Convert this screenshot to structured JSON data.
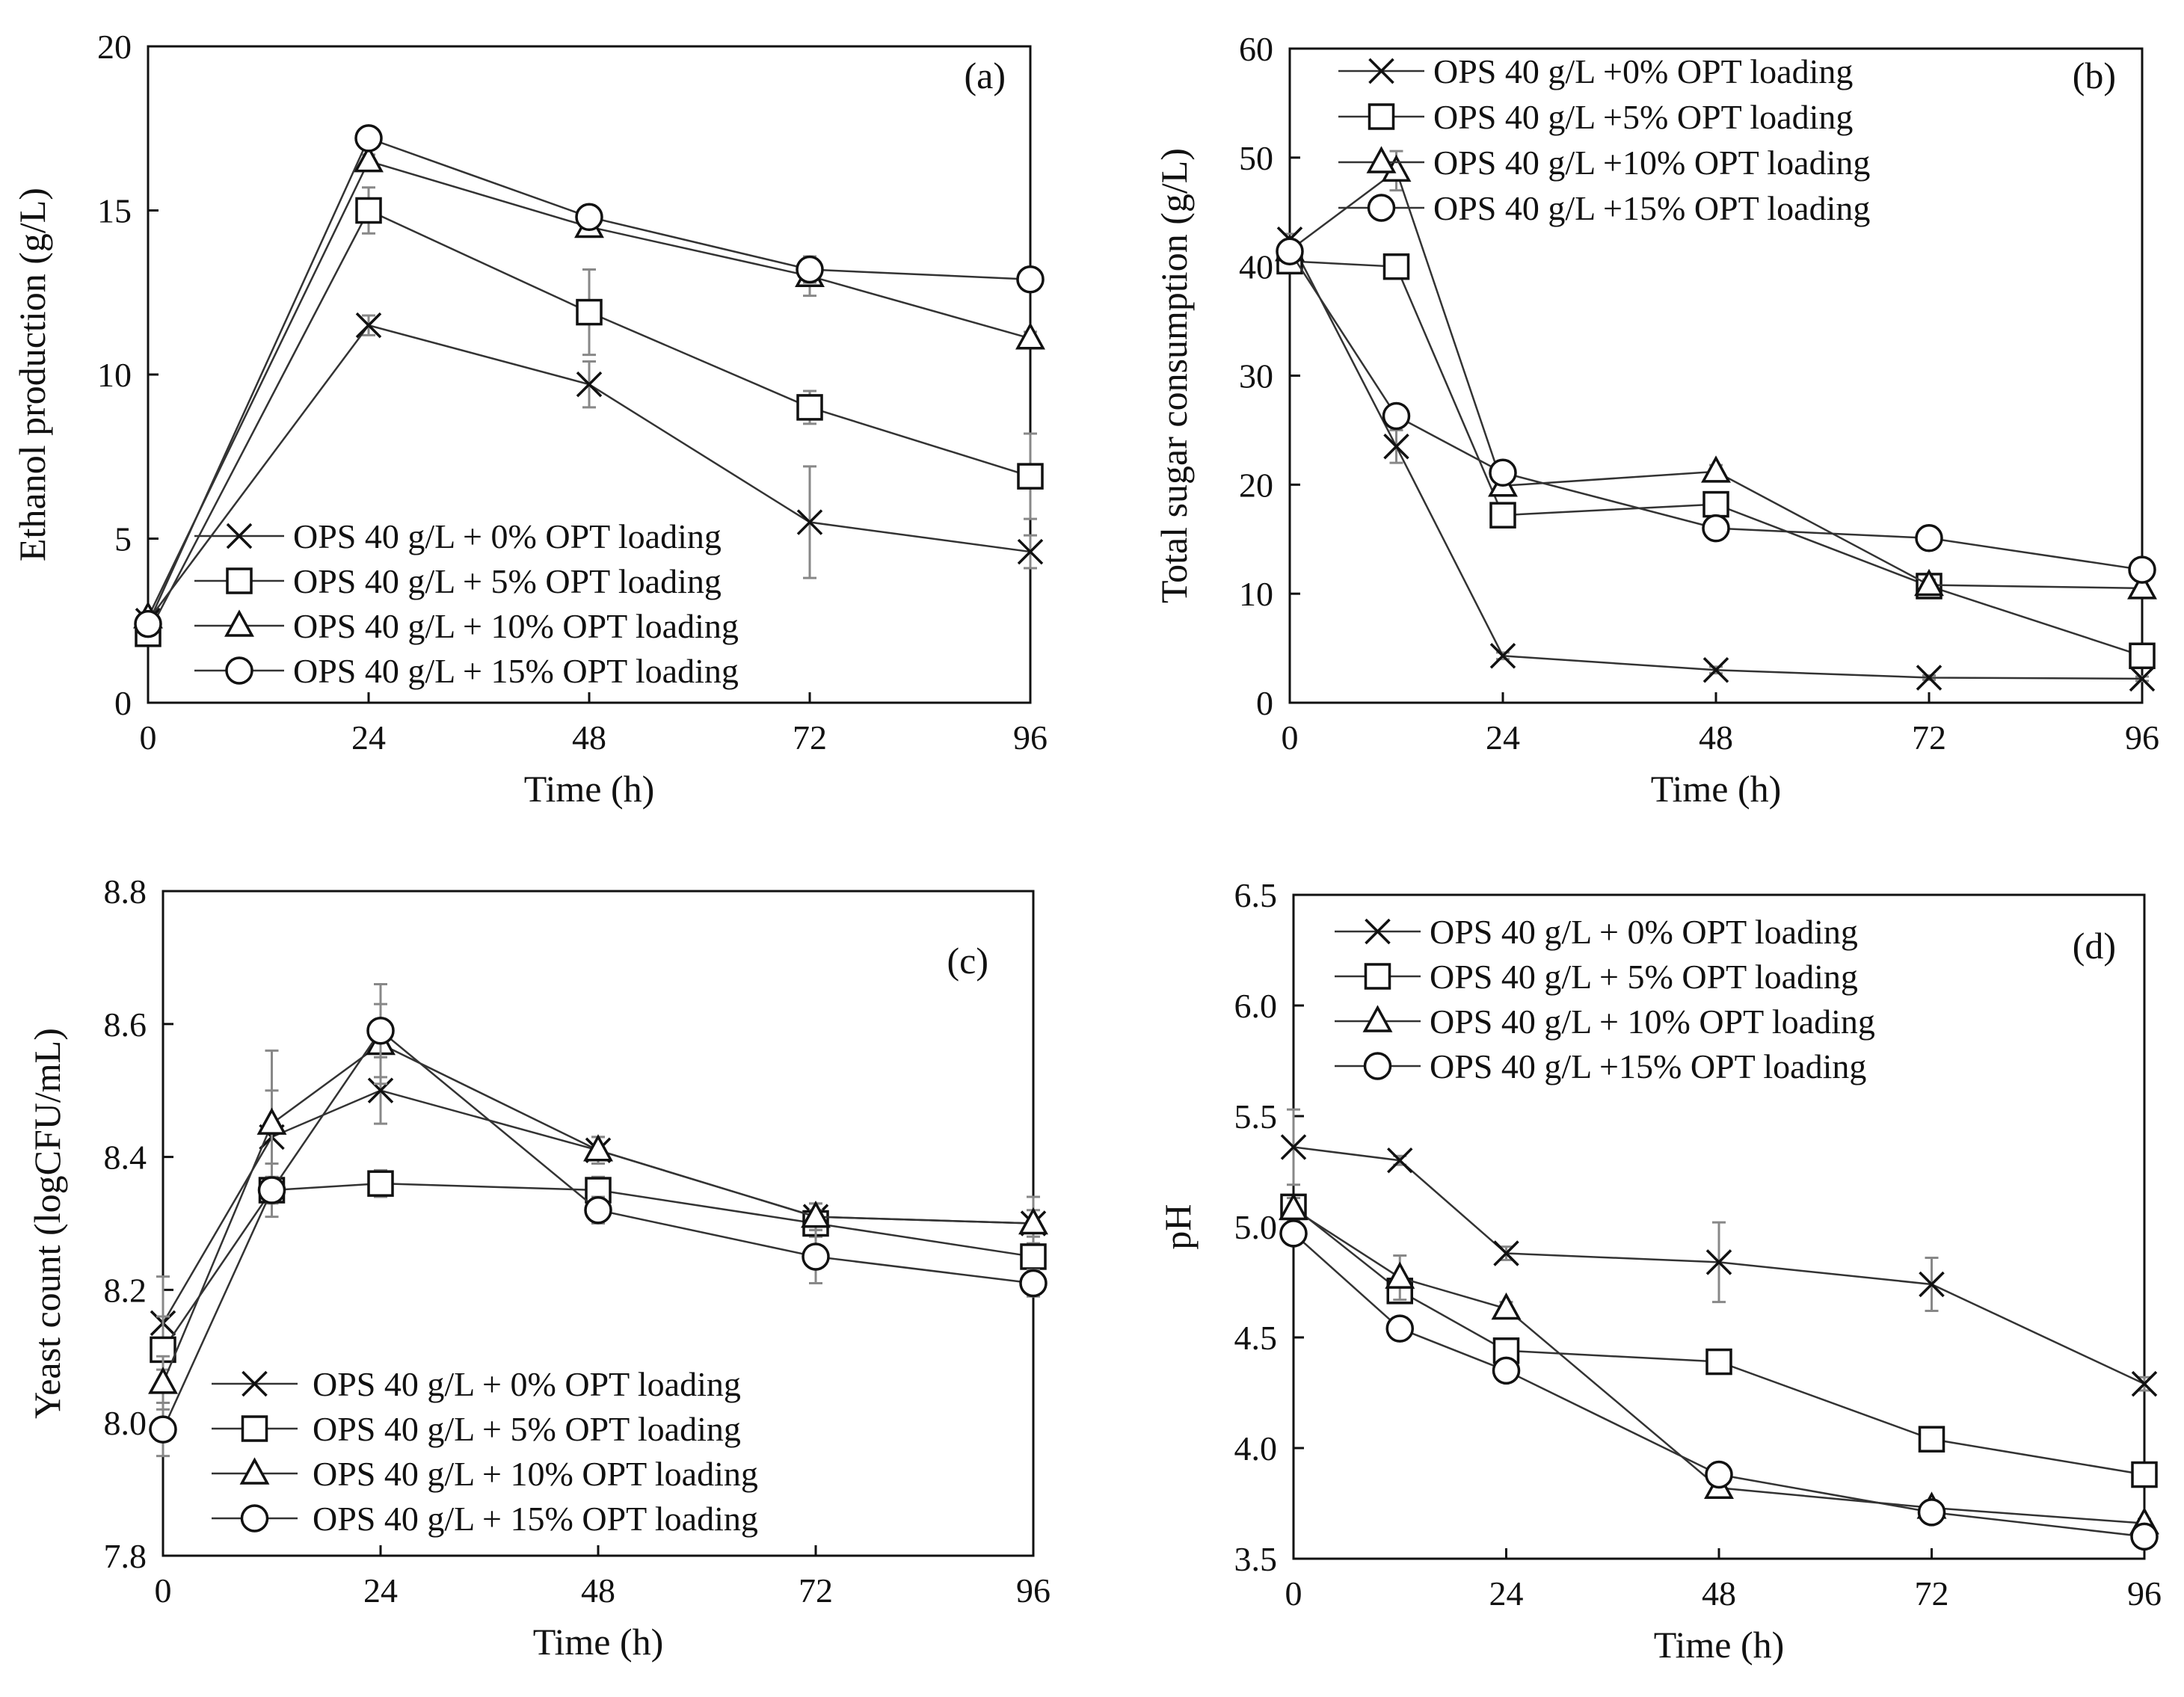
{
  "chart_data": [
    {
      "id": "a",
      "type": "line",
      "panel_label": "(a)",
      "xlabel": "Time (h)",
      "ylabel": "Ethanol production (g/L)",
      "xlim": [
        0,
        96
      ],
      "ylim": [
        0,
        20
      ],
      "xticks": [
        0,
        24,
        48,
        72,
        96
      ],
      "yticks": [
        0,
        5,
        10,
        15,
        20
      ],
      "ytick_labels": [
        "0",
        "5",
        "10",
        "15",
        "20"
      ],
      "legend_position": "bottom-left",
      "x": [
        0,
        24,
        48,
        72,
        96
      ],
      "series": [
        {
          "name": "OPS 40 g/L + 0% OPT loading",
          "marker": "x",
          "values": [
            2.5,
            11.5,
            9.7,
            5.5,
            4.6
          ],
          "errors": [
            0.2,
            0.3,
            0.7,
            1.7,
            0.5
          ]
        },
        {
          "name": "OPS 40 g/L + 5% OPT loading",
          "marker": "square",
          "values": [
            2.1,
            15.0,
            11.9,
            9.0,
            6.9
          ],
          "errors": [
            0.2,
            0.7,
            1.3,
            0.5,
            1.3
          ]
        },
        {
          "name": "OPS 40 g/L + 10% OPT loading",
          "marker": "triangle",
          "values": [
            2.6,
            16.5,
            14.5,
            13.0,
            11.1
          ],
          "errors": [
            0.1,
            0.2,
            0.3,
            0.6,
            0.2
          ]
        },
        {
          "name": "OPS 40 g/L + 15% OPT loading",
          "marker": "circle",
          "values": [
            2.4,
            17.2,
            14.8,
            13.2,
            12.9
          ],
          "errors": [
            0.1,
            0.2,
            0.2,
            0.4,
            0.1
          ]
        }
      ]
    },
    {
      "id": "b",
      "type": "line",
      "panel_label": "(b)",
      "xlabel": "Time (h)",
      "ylabel": "Total sugar consumption (g/L)",
      "xlim": [
        0,
        96
      ],
      "ylim": [
        0,
        60
      ],
      "xticks": [
        0,
        24,
        48,
        72,
        96
      ],
      "yticks": [
        0,
        10,
        20,
        30,
        40,
        50,
        60
      ],
      "ytick_labels": [
        "0",
        "10",
        "20",
        "30",
        "40",
        "50",
        "60"
      ],
      "legend_position": "top",
      "x": [
        0,
        12,
        24,
        48,
        72,
        96
      ],
      "series": [
        {
          "name": "OPS 40 g/L +0% OPT loading",
          "marker": "x",
          "values": [
            42.5,
            23.5,
            4.3,
            3.0,
            2.3,
            2.2
          ],
          "errors": [
            0.5,
            1.5,
            0.3,
            0.3,
            0.2,
            0.2
          ]
        },
        {
          "name": "OPS 40 g/L +5% OPT loading",
          "marker": "square",
          "values": [
            40.5,
            40.0,
            17.2,
            18.2,
            10.7,
            4.3
          ],
          "errors": [
            0.5,
            1.0,
            0.6,
            0.6,
            0.5,
            0.4
          ]
        },
        {
          "name": "OPS 40 g/L +10% OPT loading",
          "marker": "triangle",
          "values": [
            41.5,
            48.8,
            19.9,
            21.2,
            10.8,
            10.5
          ],
          "errors": [
            0.5,
            1.8,
            0.6,
            0.6,
            0.5,
            0.3
          ]
        },
        {
          "name": "OPS 40 g/L +15% OPT loading",
          "marker": "circle",
          "values": [
            41.4,
            26.3,
            21.1,
            16.0,
            15.1,
            12.2
          ],
          "errors": [
            0.5,
            0.8,
            0.5,
            0.4,
            0.4,
            0.4
          ]
        }
      ]
    },
    {
      "id": "c",
      "type": "line",
      "panel_label": "(c)",
      "xlabel": "Time (h)",
      "ylabel": "Yeast count (logCFU/mL)",
      "xlim": [
        0,
        96
      ],
      "ylim": [
        7.8,
        8.8
      ],
      "xticks": [
        0,
        24,
        48,
        72,
        96
      ],
      "yticks": [
        7.8,
        8.0,
        8.2,
        8.4,
        8.6,
        8.8
      ],
      "ytick_labels": [
        "7.8",
        "8.0",
        "8.2",
        "8.4",
        "8.6",
        "8.8"
      ],
      "legend_position": "bottom-left",
      "x": [
        0,
        12,
        24,
        48,
        72,
        96
      ],
      "series": [
        {
          "name": "OPS 40 g/L + 0% OPT loading",
          "marker": "x",
          "values": [
            8.15,
            8.43,
            8.5,
            8.41,
            8.31,
            8.3
          ],
          "errors": [
            0.07,
            0.07,
            0.05,
            0.02,
            0.02,
            0.04
          ]
        },
        {
          "name": "OPS 40 g/L + 5% OPT loading",
          "marker": "square",
          "values": [
            8.11,
            8.35,
            8.36,
            8.35,
            8.3,
            8.25
          ],
          "errors": [
            0.05,
            0.02,
            0.02,
            0.02,
            0.02,
            0.02
          ]
        },
        {
          "name": "OPS 40 g/L + 10% OPT loading",
          "marker": "triangle",
          "values": [
            8.06,
            8.45,
            8.57,
            8.41,
            8.31,
            8.3
          ],
          "errors": [
            0.04,
            0.11,
            0.06,
            0.02,
            0.02,
            0.02
          ]
        },
        {
          "name": "OPS 40 g/L + 15% OPT loading",
          "marker": "circle",
          "values": [
            7.99,
            8.35,
            8.59,
            8.32,
            8.25,
            8.21
          ],
          "errors": [
            0.04,
            0.04,
            0.07,
            0.02,
            0.04,
            0.02
          ]
        }
      ]
    },
    {
      "id": "d",
      "type": "line",
      "panel_label": "(d)",
      "xlabel": "Time (h)",
      "ylabel": "pH",
      "xlim": [
        0,
        96
      ],
      "ylim": [
        3.5,
        6.5
      ],
      "xticks": [
        0,
        24,
        48,
        72,
        96
      ],
      "yticks": [
        3.5,
        4.0,
        4.5,
        5.0,
        5.5,
        6.0,
        6.5
      ],
      "ytick_labels": [
        "3.5",
        "4.0",
        "4.5",
        "5.0",
        "5.5",
        "6.0",
        "6.5"
      ],
      "legend_position": "top-left",
      "x": [
        0,
        12,
        24,
        48,
        72,
        96
      ],
      "series": [
        {
          "name": "OPS 40 g/L + 0% OPT loading",
          "marker": "x",
          "values": [
            5.36,
            5.3,
            4.88,
            4.84,
            4.74,
            4.29
          ],
          "errors": [
            0.17,
            0.02,
            0.03,
            0.18,
            0.12,
            0.03
          ]
        },
        {
          "name": "OPS 40 g/L + 5% OPT loading",
          "marker": "square",
          "values": [
            5.09,
            4.71,
            4.44,
            4.39,
            4.04,
            3.88
          ],
          "errors": [
            0.05,
            0.05,
            0.05,
            0.03,
            0.03,
            0.02
          ]
        },
        {
          "name": "OPS 40 g/L + 10% OPT loading",
          "marker": "triangle",
          "values": [
            5.08,
            4.77,
            4.63,
            3.82,
            3.73,
            3.66
          ],
          "errors": [
            0.05,
            0.1,
            0.03,
            0.03,
            0.03,
            0.02
          ]
        },
        {
          "name": "OPS 40 g/L +15% OPT loading",
          "marker": "circle",
          "values": [
            4.97,
            4.54,
            4.35,
            3.88,
            3.71,
            3.6
          ],
          "errors": [
            0.04,
            0.02,
            0.02,
            0.02,
            0.02,
            0.02
          ]
        }
      ]
    }
  ]
}
